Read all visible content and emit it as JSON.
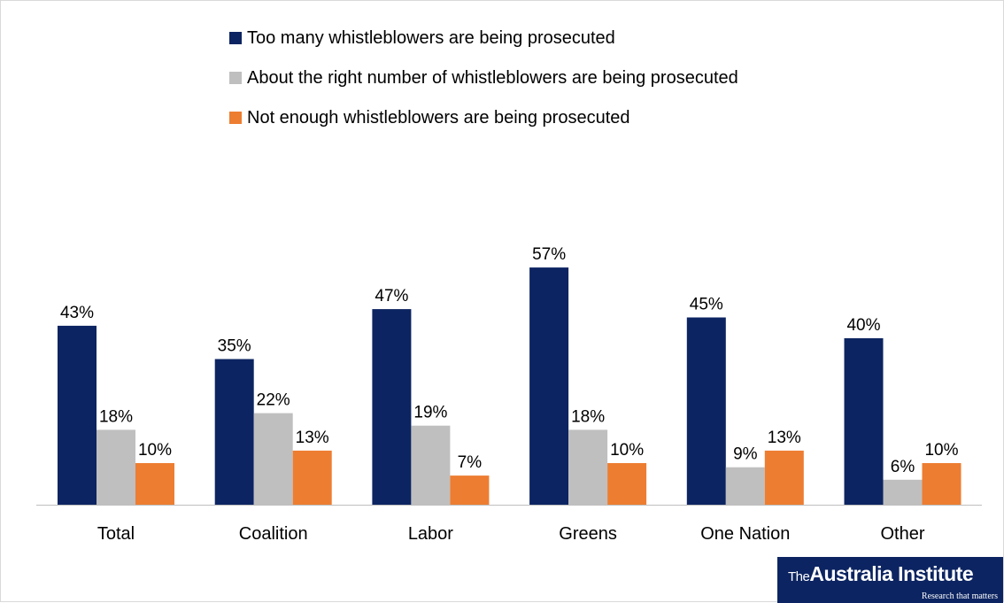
{
  "chart_data": {
    "type": "bar",
    "categories": [
      "Total",
      "Coalition",
      "Labor",
      "Greens",
      "One Nation",
      "Other"
    ],
    "series": [
      {
        "name": "Too many whistleblowers are being prosecuted",
        "color": "#0c2461",
        "values": [
          43,
          35,
          47,
          57,
          45,
          40
        ]
      },
      {
        "name": "About the right number of whistleblowers are being prosecuted",
        "color": "#bfbfbf",
        "values": [
          18,
          22,
          19,
          18,
          9,
          6
        ]
      },
      {
        "name": "Not enough whistleblowers are being prosecuted",
        "color": "#ed7d31",
        "values": [
          10,
          13,
          7,
          10,
          13,
          10
        ]
      }
    ],
    "value_suffix": "%",
    "ylim": [
      0,
      60
    ],
    "grid": false,
    "legend_position": "top"
  },
  "logo": {
    "name": "The Australia Institute",
    "tagline": "Research that matters"
  }
}
